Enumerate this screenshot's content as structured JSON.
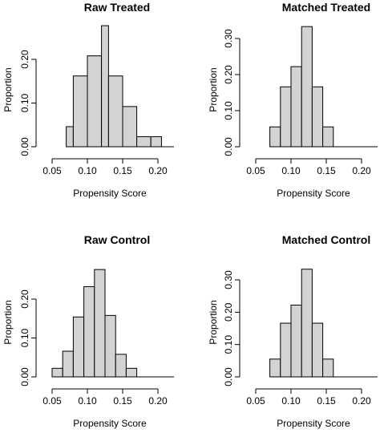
{
  "chart_data": [
    {
      "type": "bar",
      "title": "Raw Treated",
      "xlabel": "Propensity Score",
      "ylabel": "Proportion",
      "xlim": [
        0.05,
        0.2
      ],
      "xticks": [
        "0.05",
        "0.10",
        "0.15",
        "0.20"
      ],
      "xtick_values": [
        0.05,
        0.1,
        0.15,
        0.2
      ],
      "ylim": [
        0,
        0.2
      ],
      "yticks": [
        "0.00",
        "0.10",
        "0.20"
      ],
      "ytick_values": [
        0,
        0.1,
        0.2
      ],
      "bins": [
        [
          0.07,
          0.08
        ],
        [
          0.08,
          0.1
        ],
        [
          0.1,
          0.12
        ],
        [
          0.12,
          0.13
        ],
        [
          0.13,
          0.15
        ],
        [
          0.15,
          0.17
        ],
        [
          0.17,
          0.19
        ],
        [
          0.19,
          0.205
        ]
      ],
      "values": [
        0.046,
        0.162,
        0.208,
        0.277,
        0.162,
        0.092,
        0.023,
        0.023
      ]
    },
    {
      "type": "bar",
      "title": "Matched Treated",
      "xlabel": "Propensity Score",
      "ylabel": "Proportion",
      "xlim": [
        0.05,
        0.2
      ],
      "xticks": [
        "0.05",
        "0.10",
        "0.15",
        "0.20"
      ],
      "xtick_values": [
        0.05,
        0.1,
        0.15,
        0.2
      ],
      "ylim": [
        0,
        0.3
      ],
      "yticks": [
        "0.00",
        "0.10",
        "0.20",
        "0.30"
      ],
      "ytick_values": [
        0,
        0.1,
        0.2,
        0.3
      ],
      "bins": [
        [
          0.07,
          0.085
        ],
        [
          0.085,
          0.1
        ],
        [
          0.1,
          0.115
        ],
        [
          0.115,
          0.13
        ],
        [
          0.13,
          0.145
        ],
        [
          0.145,
          0.16
        ]
      ],
      "values": [
        0.055,
        0.166,
        0.222,
        0.333,
        0.166,
        0.055
      ]
    },
    {
      "type": "bar",
      "title": "Raw Control",
      "xlabel": "Propensity Score",
      "ylabel": "Proportion",
      "xlim": [
        0.05,
        0.2
      ],
      "xticks": [
        "0.05",
        "0.10",
        "0.15",
        "0.20"
      ],
      "xtick_values": [
        0.05,
        0.1,
        0.15,
        0.2
      ],
      "ylim": [
        0,
        0.2
      ],
      "yticks": [
        "0.00",
        "0.10",
        "0.20"
      ],
      "ytick_values": [
        0,
        0.1,
        0.2
      ],
      "bins": [
        [
          0.05,
          0.065
        ],
        [
          0.065,
          0.08
        ],
        [
          0.08,
          0.095
        ],
        [
          0.095,
          0.11
        ],
        [
          0.11,
          0.125
        ],
        [
          0.125,
          0.14
        ],
        [
          0.14,
          0.155
        ],
        [
          0.155,
          0.17
        ],
        [
          0.17,
          0.185
        ]
      ],
      "values": [
        0.022,
        0.066,
        0.154,
        0.232,
        0.276,
        0.158,
        0.058,
        0.022,
        0.0
      ]
    },
    {
      "type": "bar",
      "title": "Matched Control",
      "xlabel": "Propensity Score",
      "ylabel": "Proportion",
      "xlim": [
        0.05,
        0.2
      ],
      "xticks": [
        "0.05",
        "0.10",
        "0.15",
        "0.20"
      ],
      "xtick_values": [
        0.05,
        0.1,
        0.15,
        0.2
      ],
      "ylim": [
        0,
        0.3
      ],
      "yticks": [
        "0.00",
        "0.10",
        "0.20",
        "0.30"
      ],
      "ytick_values": [
        0,
        0.1,
        0.2,
        0.3
      ],
      "bins": [
        [
          0.07,
          0.085
        ],
        [
          0.085,
          0.1
        ],
        [
          0.1,
          0.115
        ],
        [
          0.115,
          0.13
        ],
        [
          0.13,
          0.145
        ],
        [
          0.145,
          0.16
        ]
      ],
      "values": [
        0.055,
        0.166,
        0.222,
        0.333,
        0.166,
        0.055
      ]
    }
  ]
}
